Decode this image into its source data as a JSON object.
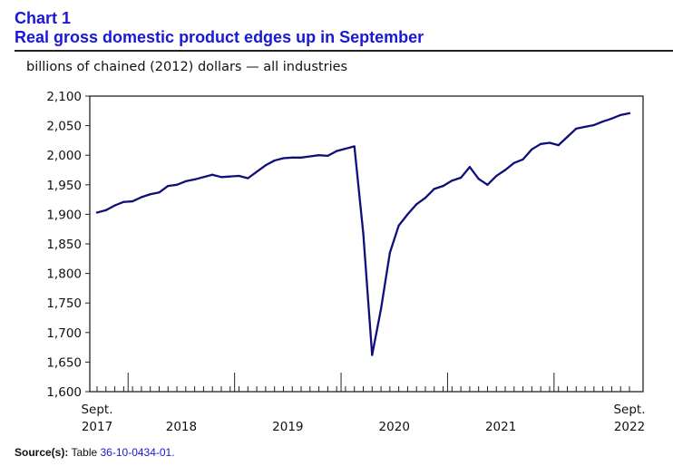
{
  "header": {
    "chart_number": "Chart 1",
    "title": "Real gross domestic product edges up in September"
  },
  "source": {
    "label": "Source(s):",
    "text": "Table ",
    "table_id": "36-10-0434-01",
    "trailing": "."
  },
  "colors": {
    "title": "#1a17d6",
    "series": "#0f0f7a",
    "axis": "#222222"
  },
  "chart_data": {
    "type": "line",
    "title": "Real gross domestic product edges up in September",
    "ylabel": "billions of chained (2012) dollars — all industries",
    "xlabel": "",
    "ylim": [
      1600,
      2100
    ],
    "yticks": [
      1600,
      1650,
      1700,
      1750,
      1800,
      1850,
      1900,
      1950,
      2000,
      2050,
      2100
    ],
    "ytick_labels": [
      "1,600",
      "1,650",
      "1,700",
      "1,750",
      "1,800",
      "1,850",
      "1,900",
      "1,950",
      "2,000",
      "2,050",
      "2,100"
    ],
    "grid": false,
    "x_start_label": {
      "month": "Sept.",
      "year": "2017"
    },
    "x_end_label": {
      "month": "Sept.",
      "year": "2022"
    },
    "year_labels": [
      {
        "label": "2018",
        "center_index": 9.5
      },
      {
        "label": "2019",
        "center_index": 21.5
      },
      {
        "label": "2020",
        "center_index": 33.5
      },
      {
        "label": "2021",
        "center_index": 45.5
      }
    ],
    "year_boundaries": [
      4,
      16,
      28,
      40,
      52
    ],
    "series": [
      {
        "name": "Real GDP, all industries",
        "start": "2017-09",
        "end": "2022-09",
        "frequency": "monthly",
        "values": [
          1903,
          1907,
          1915,
          1921,
          1922,
          1929,
          1934,
          1937,
          1948,
          1950,
          1956,
          1959,
          1963,
          1967,
          1963,
          1964,
          1965,
          1961,
          1972,
          1983,
          1991,
          1995,
          1996,
          1996,
          1998,
          2000,
          1999,
          2007,
          2011,
          2015,
          1868,
          1662,
          1740,
          1835,
          1881,
          1900,
          1917,
          1928,
          1943,
          1948,
          1957,
          1962,
          1980,
          1960,
          1950,
          1965,
          1975,
          1987,
          1993,
          2010,
          2019,
          2021,
          2017,
          2031,
          2045,
          2048,
          2051,
          2057,
          2062,
          2068,
          2071
        ]
      }
    ]
  }
}
